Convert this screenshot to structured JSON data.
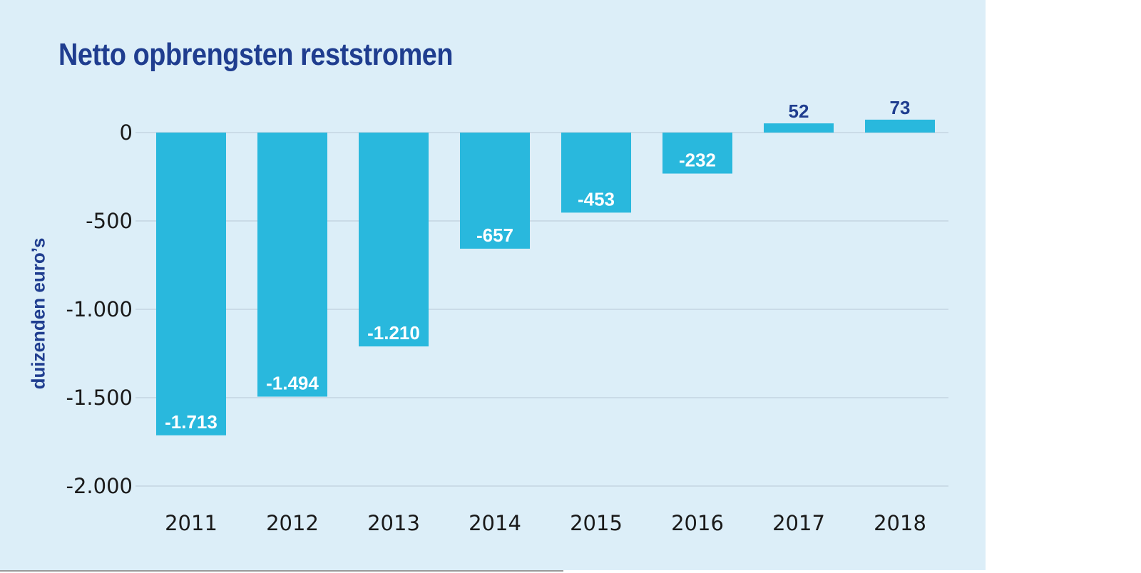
{
  "chart_data": {
    "type": "bar",
    "title": "Netto opbrengsten reststromen",
    "ylabel": "duizenden euro’s",
    "xlabel": "",
    "categories": [
      "2011",
      "2012",
      "2013",
      "2014",
      "2015",
      "2016",
      "2017",
      "2018"
    ],
    "values": [
      -1713,
      -1494,
      -1210,
      -657,
      -453,
      -232,
      52,
      73
    ],
    "value_labels": [
      "-1.713",
      "-1.494",
      "-1.210",
      "-657",
      "-453",
      "-232",
      "52",
      "73"
    ],
    "ylim": [
      -2000,
      0
    ],
    "yticks": [
      0,
      -500,
      -1000,
      -1500,
      -2000
    ],
    "ytick_labels": [
      "0",
      "-500",
      "-1.000",
      "-1.500",
      "-2.000"
    ],
    "grid": true,
    "colors": {
      "bar": "#29b8dd",
      "background": "#dceef8",
      "title": "#1f3d8f",
      "label_inside": "#ffffff",
      "label_outside": "#1f3d8f",
      "gridline": "#b7c8d6"
    }
  }
}
